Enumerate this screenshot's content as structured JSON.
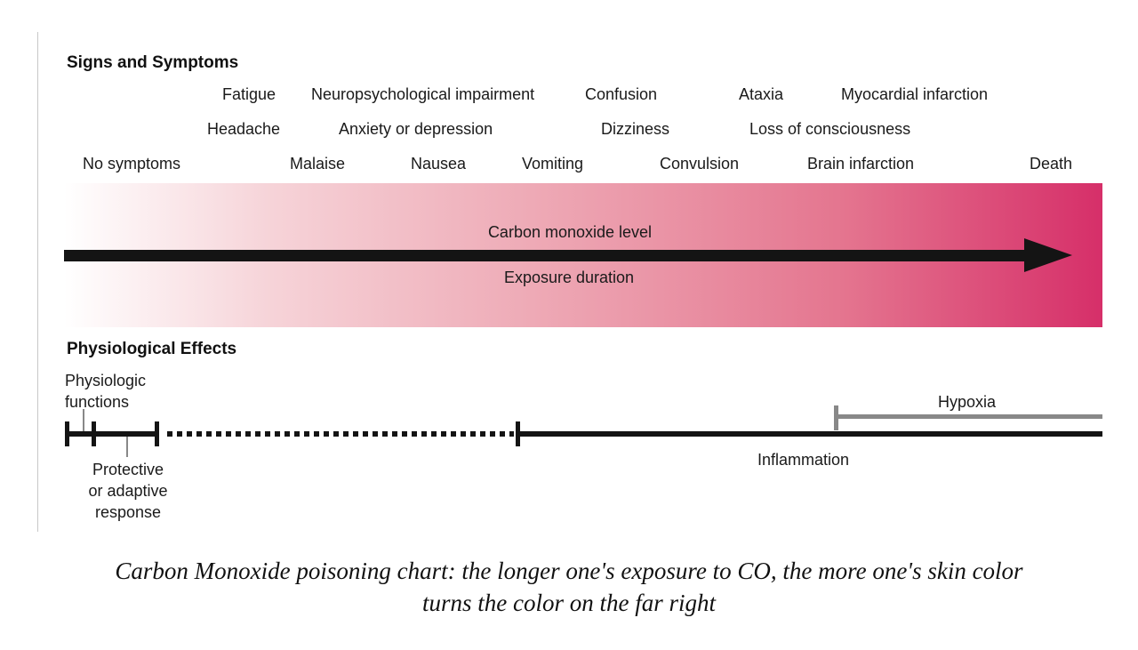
{
  "sections": {
    "signs_heading": "Signs and Symptoms",
    "physio_heading": "Physiological Effects"
  },
  "symptoms": {
    "row1": [
      "Fatigue",
      "Neuropsychological impairment",
      "Confusion",
      "Ataxia",
      "Myocardial infarction"
    ],
    "row2": [
      "Headache",
      "Anxiety or depression",
      "Dizziness",
      "Loss of consciousness"
    ],
    "row3": [
      "No symptoms",
      "Malaise",
      "Nausea",
      "Vomiting",
      "Convulsion",
      "Brain infarction",
      "Death"
    ]
  },
  "arrow": {
    "top_label": "Carbon monoxide level",
    "bottom_label": "Exposure duration"
  },
  "gradient_colors": [
    "#ffffff",
    "#f6d3d8",
    "#eeaab6",
    "#e4758f",
    "#d62f69"
  ],
  "effects": {
    "physiologic": [
      "Physiologic",
      "functions"
    ],
    "protective": [
      "Protective",
      "or adaptive",
      "response"
    ],
    "hypoxia": "Hypoxia",
    "inflammation": "Inflammation"
  },
  "caption": {
    "line1": "Carbon Monoxide poisoning chart: the longer one's exposure to CO, the more one's skin color",
    "line2": "turns the color on the far right"
  }
}
